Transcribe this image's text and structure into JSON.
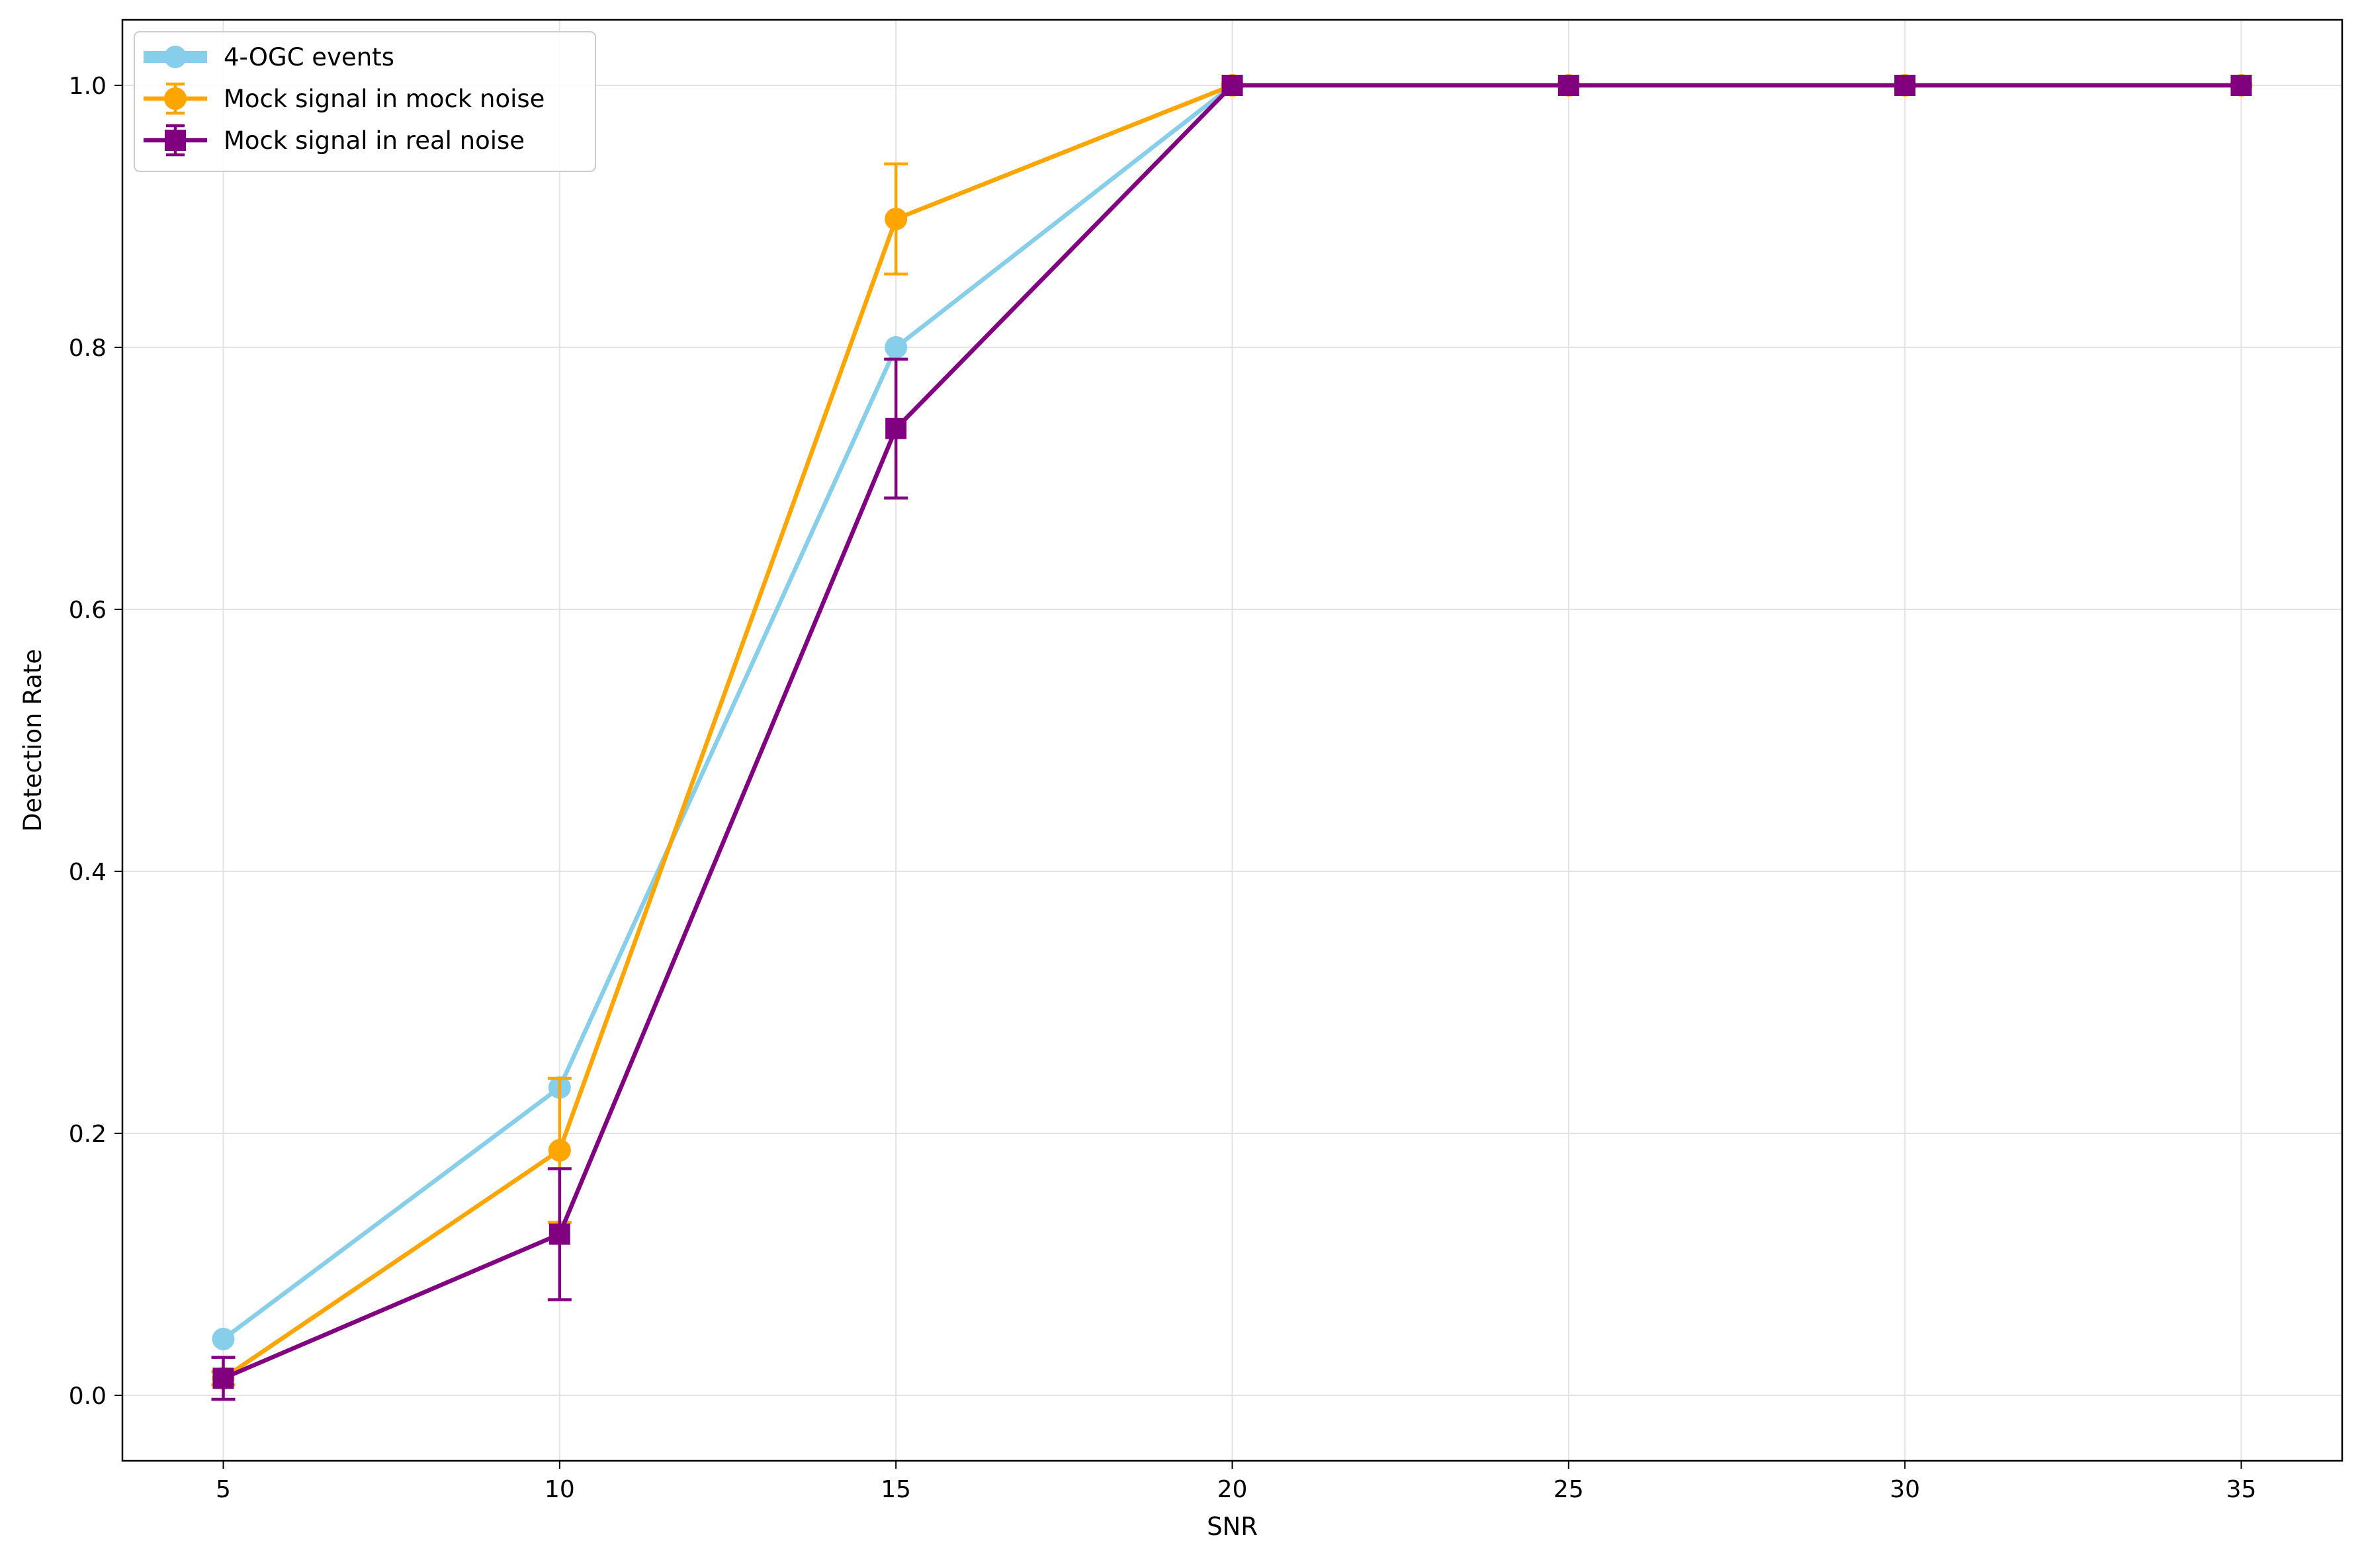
{
  "chart_data": {
    "type": "line",
    "xlabel": "SNR",
    "ylabel": "Detection Rate",
    "xlim": [
      3.5,
      36.5
    ],
    "ylim": [
      -0.05,
      1.05
    ],
    "xticks": [
      5,
      10,
      15,
      20,
      25,
      30,
      35
    ],
    "yticks": [
      0.0,
      0.2,
      0.4,
      0.6,
      0.8,
      1.0
    ],
    "grid": true,
    "legend_position": "top-left",
    "series": [
      {
        "name": "4-OGC events",
        "color": "#87CEEB",
        "marker": "circle",
        "x": [
          5,
          10,
          15,
          20
        ],
        "y": [
          0.043,
          0.235,
          0.8,
          1.0
        ]
      },
      {
        "name": "Mock signal in mock noise",
        "color": "#FFA500",
        "marker": "circle",
        "x": [
          5,
          10,
          15,
          20,
          25,
          30,
          35
        ],
        "y": [
          0.013,
          0.187,
          0.898,
          1.0,
          1.0,
          1.0,
          1.0
        ],
        "yerr": [
          0.005,
          0.055,
          0.042,
          0.0,
          0.0,
          0.0,
          0.0
        ]
      },
      {
        "name": "Mock signal in real noise",
        "color": "#800080",
        "marker": "square",
        "x": [
          5,
          10,
          15,
          20,
          25,
          30,
          35
        ],
        "y": [
          0.013,
          0.123,
          0.738,
          1.0,
          1.0,
          1.0,
          1.0
        ],
        "yerr": [
          0.016,
          0.05,
          0.053,
          0.0,
          0.0,
          0.0,
          0.0
        ]
      }
    ]
  }
}
